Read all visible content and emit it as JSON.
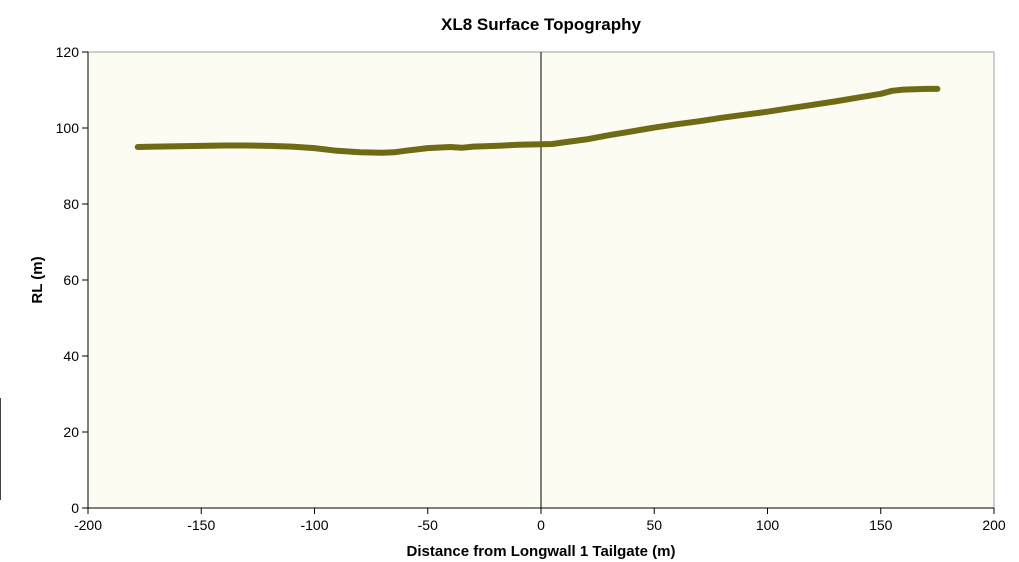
{
  "chart_data": {
    "type": "line",
    "title": "XL8 Surface Topography",
    "xlabel": "Distance from Longwall 1 Tailgate (m)",
    "ylabel": "RL (m)",
    "xlim": [
      -200,
      200
    ],
    "ylim": [
      0,
      120
    ],
    "xticks": [
      -200,
      -150,
      -100,
      -50,
      0,
      50,
      100,
      150,
      200
    ],
    "yticks": [
      0,
      20,
      40,
      60,
      80,
      100,
      120
    ],
    "x_tick_labels": [
      "-200",
      "-150",
      "-100",
      "-50",
      "0",
      "50",
      "100",
      "150",
      "200"
    ],
    "y_tick_labels": [
      "0",
      "20",
      "40",
      "60",
      "80",
      "100",
      "120"
    ],
    "grid": false,
    "vertical_reference_x": 0,
    "colors": {
      "plot_background": "#fdfcf3",
      "line": "#6e6b14",
      "axis": "#000000"
    },
    "series": [
      {
        "x": [
          -178,
          -170,
          -160,
          -150,
          -140,
          -130,
          -120,
          -110,
          -100,
          -90,
          -80,
          -70,
          -65,
          -60,
          -50,
          -40,
          -35,
          -30,
          -20,
          -10,
          0,
          5,
          10,
          20,
          30,
          40,
          50,
          60,
          70,
          80,
          90,
          100,
          110,
          120,
          130,
          140,
          150,
          155,
          160,
          170,
          175
        ],
        "y": [
          95.0,
          95.1,
          95.2,
          95.3,
          95.4,
          95.4,
          95.3,
          95.1,
          94.7,
          94.0,
          93.6,
          93.5,
          93.6,
          94.0,
          94.7,
          95.0,
          94.8,
          95.1,
          95.3,
          95.6,
          95.7,
          95.8,
          96.2,
          97.0,
          98.1,
          99.1,
          100.1,
          101.0,
          101.8,
          102.7,
          103.5,
          104.3,
          105.2,
          106.1,
          107.0,
          108.0,
          109.0,
          109.8,
          110.1,
          110.3,
          110.3
        ]
      }
    ]
  }
}
